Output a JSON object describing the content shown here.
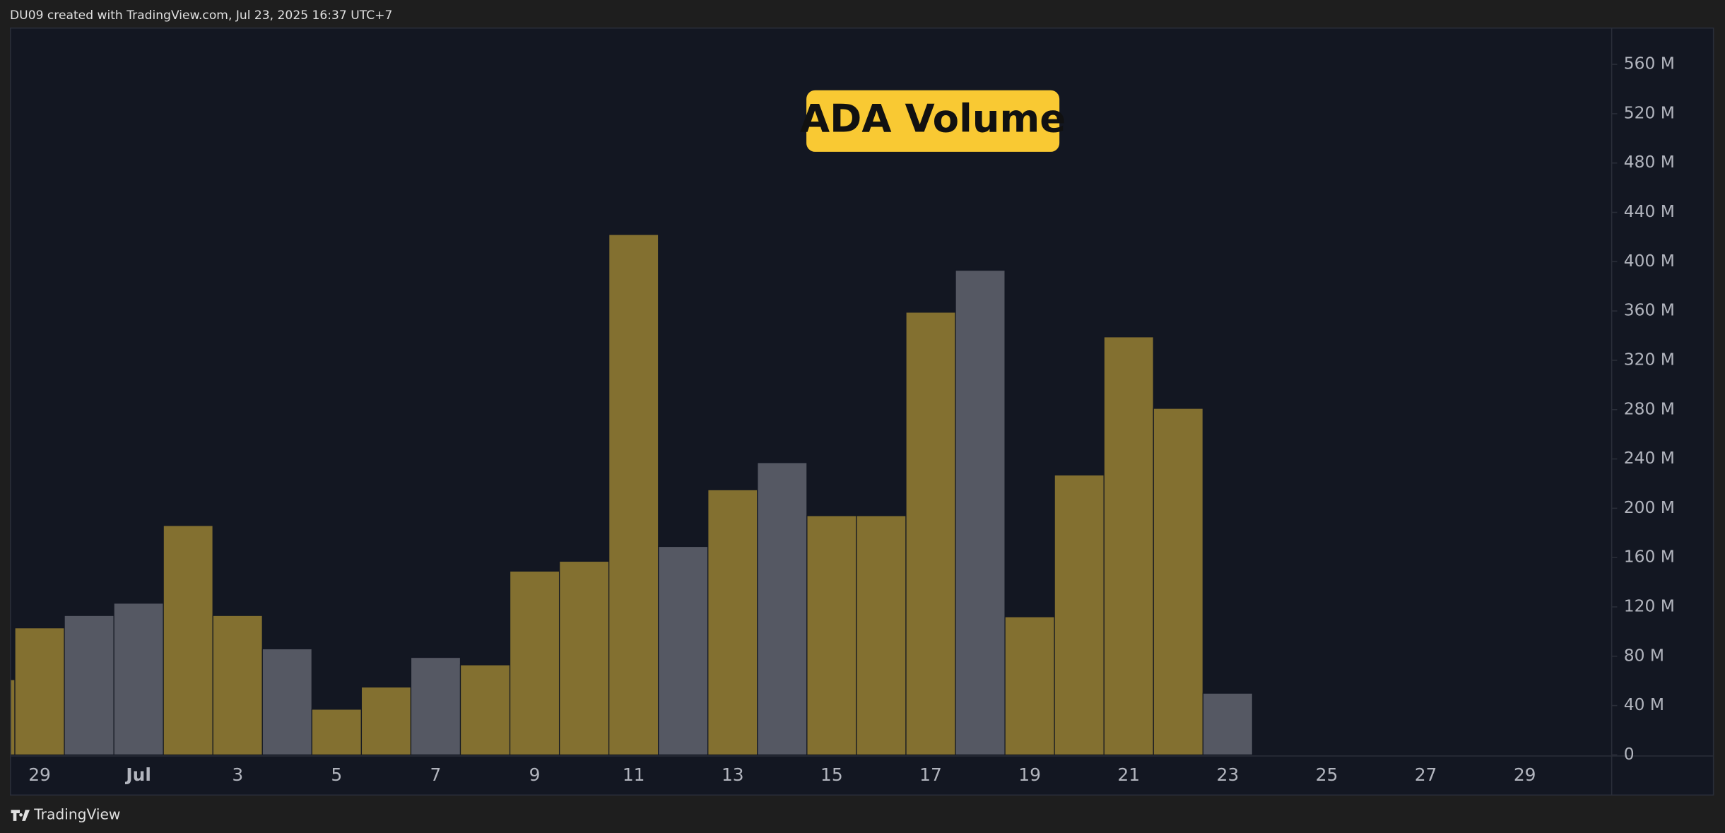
{
  "header": {
    "text": "DU09 created with TradingView.com, Jul 23, 2025 16:37 UTC+7"
  },
  "footer": {
    "brand": "TradingView"
  },
  "chart_data": {
    "type": "bar",
    "title": "ADA Volume",
    "categories": [
      null,
      "29",
      null,
      "Jul",
      null,
      "3",
      null,
      "5",
      null,
      "7",
      null,
      "9",
      null,
      "11",
      null,
      "13",
      null,
      "15",
      null,
      "17",
      null,
      "19",
      null,
      "21",
      null,
      "23",
      null,
      "25",
      null,
      "27",
      null,
      "29",
      null
    ],
    "values": [
      61,
      103,
      113,
      123,
      186,
      113,
      86,
      37,
      55,
      79,
      73,
      149,
      157,
      422,
      169,
      215,
      237,
      194,
      194,
      359,
      393,
      112,
      227,
      339,
      281,
      50,
      null,
      null,
      null,
      null,
      null,
      null,
      null
    ],
    "colors": [
      "#837030",
      "#837030",
      "#555863",
      "#555863",
      "#837030",
      "#837030",
      "#555863",
      "#837030",
      "#837030",
      "#555863",
      "#837030",
      "#837030",
      "#837030",
      "#837030",
      "#555863",
      "#837030",
      "#555863",
      "#837030",
      "#837030",
      "#837030",
      "#555863",
      "#837030",
      "#837030",
      "#837030",
      "#837030",
      "#555863",
      null,
      null,
      null,
      null,
      null,
      null,
      null
    ],
    "ylim": [
      0,
      589
    ],
    "yticks": [
      0,
      {
        "value": 40,
        "label": "40 M"
      },
      {
        "value": 80,
        "label": "80 M"
      },
      {
        "value": 120,
        "label": "120 M"
      },
      {
        "value": 160,
        "label": "160 M"
      },
      {
        "value": 200,
        "label": "200 M"
      },
      {
        "value": 240,
        "label": "240 M"
      },
      {
        "value": 280,
        "label": "280 M"
      },
      {
        "value": 320,
        "label": "320 M"
      },
      {
        "value": 360,
        "label": "360 M"
      },
      {
        "value": 400,
        "label": "400 M"
      },
      {
        "value": 440,
        "label": "440 M"
      },
      {
        "value": 480,
        "label": "480 M"
      },
      {
        "value": 520,
        "label": "520 M"
      },
      {
        "value": 560,
        "label": "560 M"
      }
    ],
    "grid": false
  }
}
